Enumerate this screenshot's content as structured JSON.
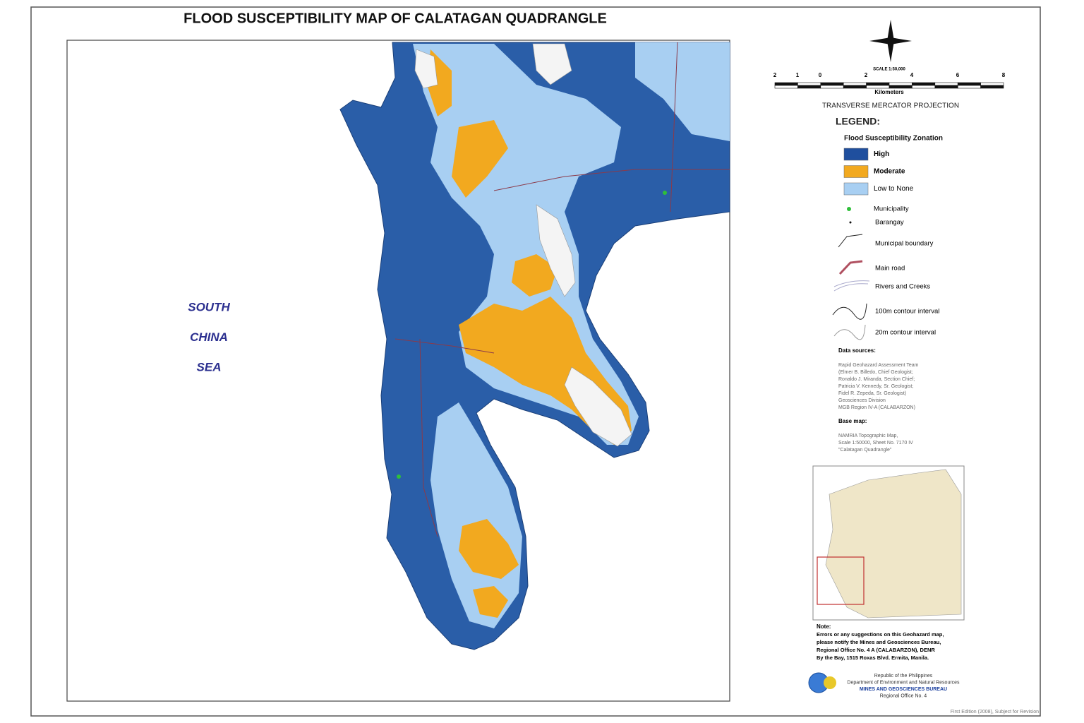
{
  "title": "FLOOD SUSCEPTIBILITY MAP OF CALATAGAN QUADRANGLE",
  "sea_label": [
    "SOUTH",
    "CHINA",
    "SEA"
  ],
  "scale": {
    "label": "SCALE 1:50,000",
    "ticks": [
      "2",
      "1",
      "0",
      "2",
      "4",
      "6",
      "8"
    ],
    "unit": "Kilometers"
  },
  "projection": "TRANSVERSE MERCATOR PROJECTION",
  "legend": {
    "title": "LEGEND:",
    "subtitle": "Flood Susceptibility Zonation",
    "zones": [
      {
        "label": "High",
        "color": "#1f4f9e"
      },
      {
        "label": "Moderate",
        "color": "#f2a91f"
      },
      {
        "label": "Low to None",
        "color": "#a8cff2"
      }
    ],
    "symbols": [
      "Municipality",
      "Barangay",
      "Municipal boundary",
      "Main road",
      "Rivers and Creeks",
      "100m contour interval",
      "20m contour interval"
    ]
  },
  "data_sources": {
    "title": "Data sources:",
    "lines": [
      "Rapid Geohazard Assessment Team",
      "(Elmer B. Billedo, Chief Geologist;",
      "Ronaldo J. Miranda, Section Chief;",
      "Patricia V. Kennedy, Sr. Geologist;",
      "Fidel R. Zepeda, Sr. Geologist)",
      "Geosciences Division",
      "MGB Region IV-A (CALABARZON)"
    ]
  },
  "base_map": {
    "title": "Base map:",
    "lines": [
      "NAMRIA Topographic Map,",
      "Scale 1:50000, Sheet No. 7170 IV",
      "\"Calatagan Quadrangle\""
    ]
  },
  "note": {
    "title": "Note:",
    "lines": [
      "Errors or any suggestions on this Geohazard map,",
      "please notify the Mines and Geosciences Bureau,",
      "Regional Office No. 4 A (CALABARZON), DENR",
      "By the Bay, 1515 Roxas Blvd. Ermita, Manila."
    ]
  },
  "agency": [
    "Republic of the Philippines",
    "Department of Environment and Natural Resources",
    "MINES AND GEOSCIENCES BUREAU",
    "Regional Office No. 4"
  ],
  "edition": "First Edition (2008), Subject for Revision"
}
